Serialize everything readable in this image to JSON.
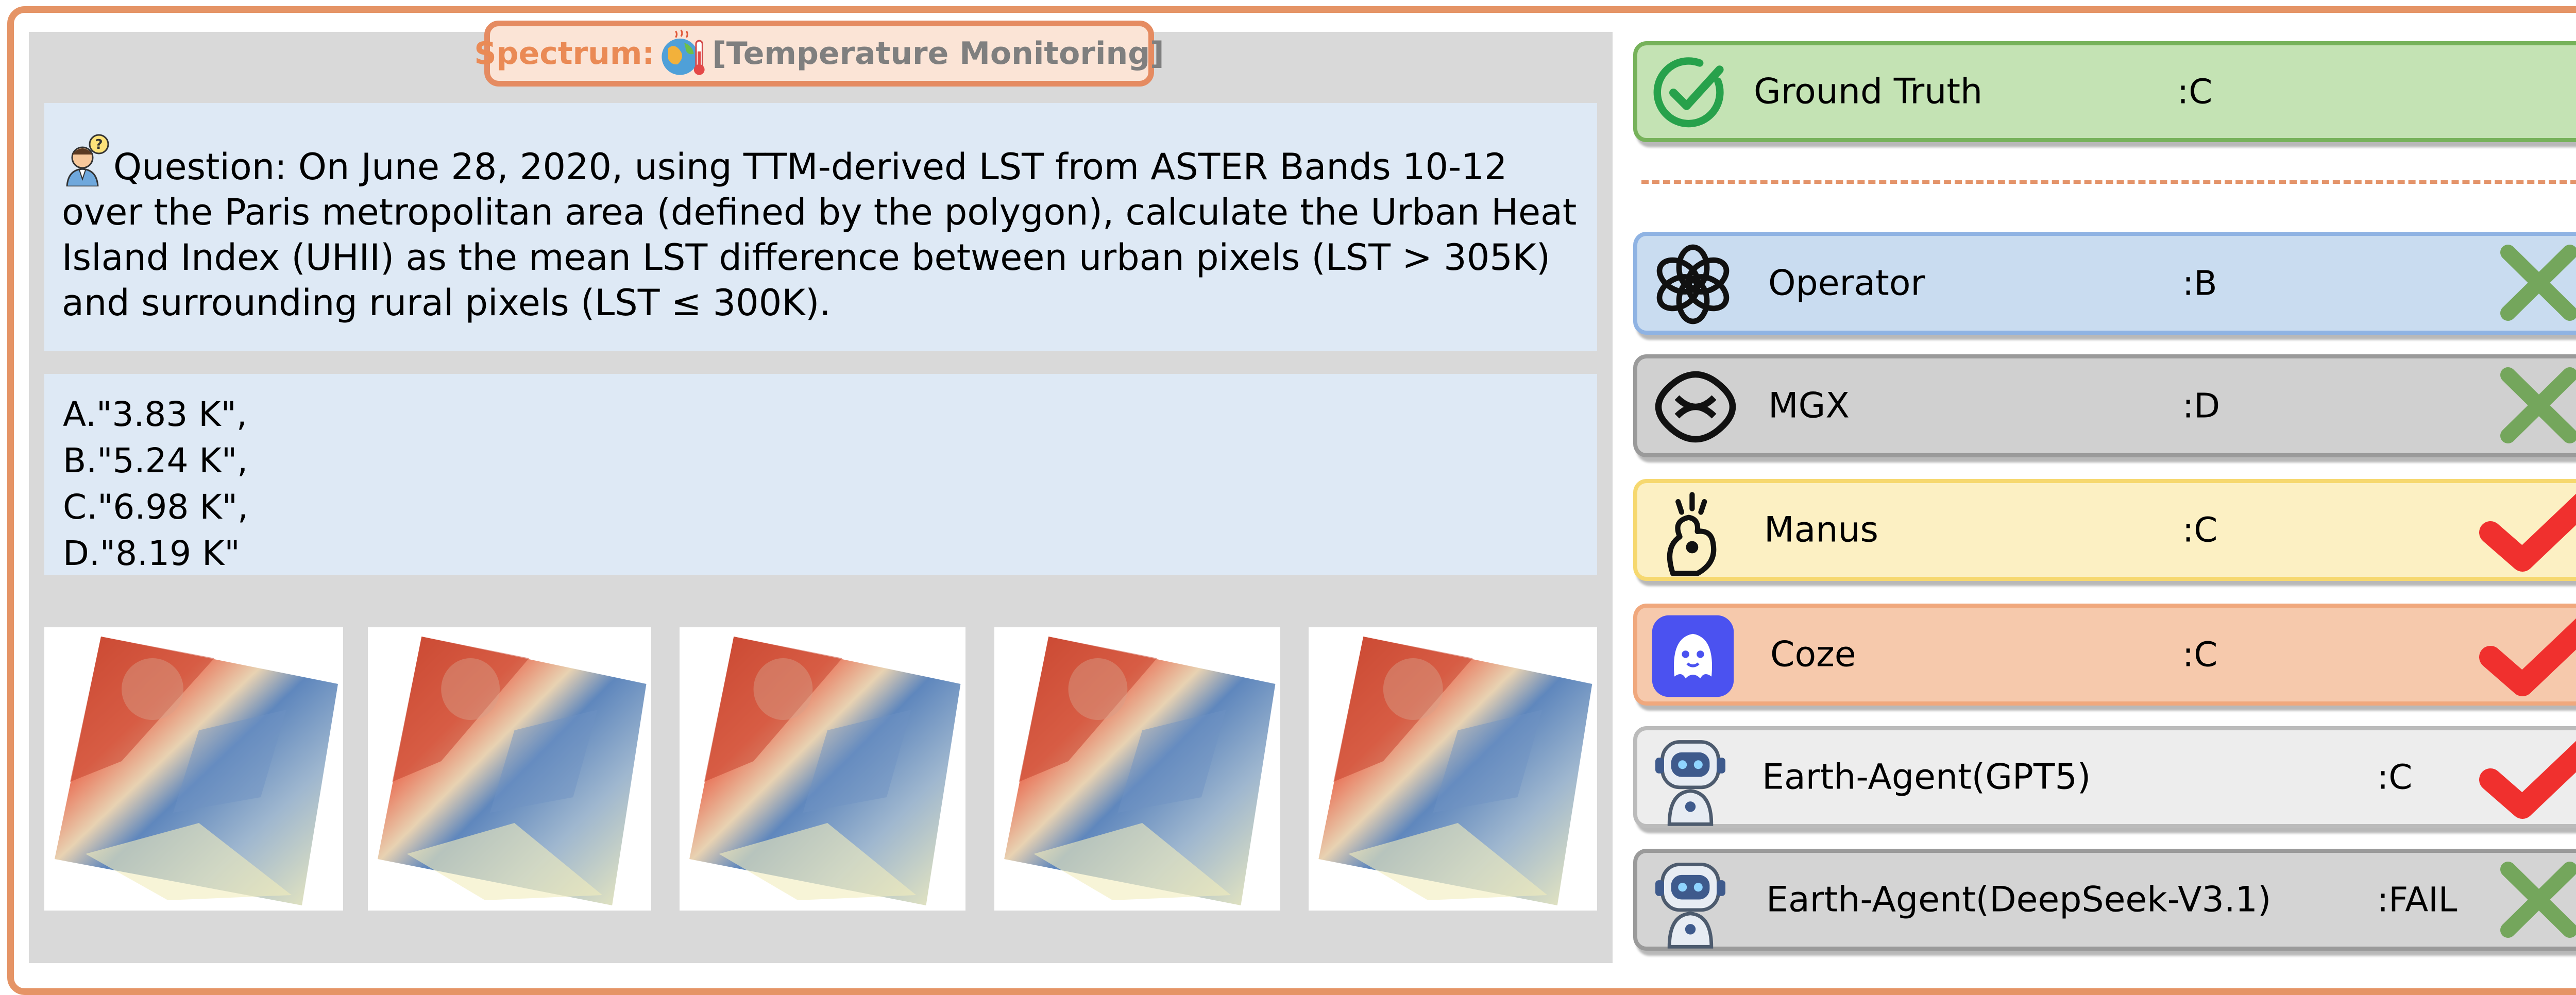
{
  "spectrum": {
    "label": "Spectrum:",
    "value": "[Temperature Monitoring]",
    "icon": "globe-thermometer-icon"
  },
  "question": {
    "text": "Question: On June 28, 2020, using TTM-derived LST from ASTER Bands 10-12 over the Paris metropolitan area (defined by the polygon), calculate the Urban Heat Island Index (UHII) as the mean LST difference between urban pixels (LST > 305K) and surrounding rural pixels (LST ≤ 300K).",
    "icon": "scientist-question-icon"
  },
  "options": [
    "A.\"3.83 K\",",
    "B.\"5.24 K\",",
    "C.\"6.98 K\",",
    "D.\"8.19 K\""
  ],
  "images": {
    "count": 5,
    "description_colors": {
      "hot": "#c8452f",
      "cool": "#5f87bd",
      "mild": "#f1edbd"
    }
  },
  "ground_truth": {
    "name": "Ground Truth",
    "answer": ":C",
    "icon": "check-circle-icon"
  },
  "agents": [
    {
      "name": "Operator",
      "answer": ":B",
      "result": "wrong",
      "icon": "openai-logo-icon",
      "bg": "#c9dcf0",
      "border": "#8fb3e3"
    },
    {
      "name": "MGX",
      "answer": ":D",
      "result": "wrong",
      "icon": "mgx-logo-icon",
      "bg": "#d0d0d0",
      "border": "#9a9a9a"
    },
    {
      "name": "Manus",
      "answer": ":C",
      "result": "correct",
      "icon": "manus-logo-icon",
      "bg": "#fcf0c3",
      "border": "#f6d86f"
    },
    {
      "name": "Coze",
      "answer": ":C",
      "result": "correct",
      "icon": "coze-logo-icon",
      "bg": "#f6c9ac",
      "border": "#f0a87d"
    },
    {
      "name": "Earth-Agent(GPT5)",
      "answer": ":C",
      "result": "correct",
      "icon": "robot-icon",
      "bg": "#ededed",
      "border": "#bbbbbb"
    },
    {
      "name": "Earth-Agent(DeepSeek-V3.1)",
      "answer": ":FAIL",
      "result": "wrong",
      "icon": "robot-icon",
      "bg": "#d4d4d4",
      "border": "#9a9a9a"
    }
  ],
  "colors": {
    "frame": "#e59466",
    "correct": "#f0302e",
    "wrong": "#74a65c",
    "ground_truth_bg": "#c4e3b4",
    "ground_truth_border": "#76b25a"
  }
}
